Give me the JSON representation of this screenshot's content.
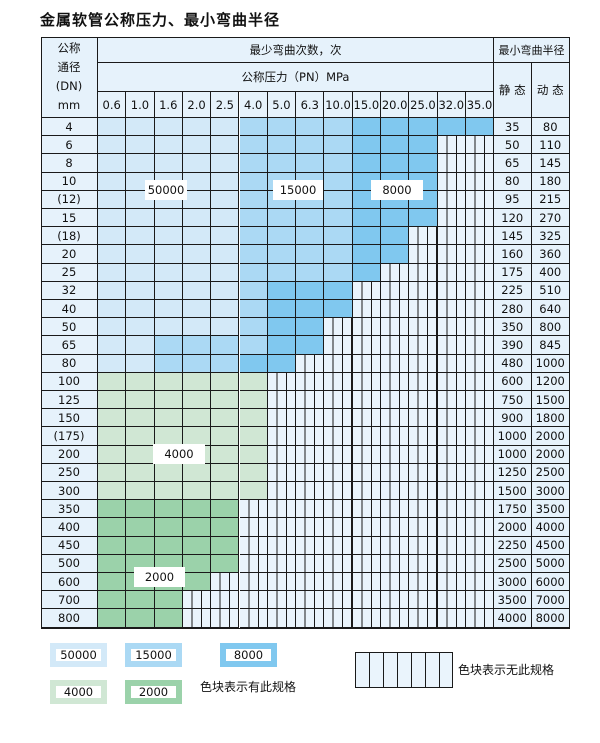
{
  "title": "金属软管公称压力、最小弯曲半径",
  "header": {
    "dn_label_lines": [
      "公称",
      "通径",
      "(DN)",
      "mm"
    ],
    "bend_count": "最少弯曲次数，次",
    "pressure": "公称压力（PN）MPa",
    "min_radius": "最小弯曲半径",
    "static": "静 态",
    "dynamic": "动 态",
    "pressures": [
      "0.6",
      "1.0",
      "1.6",
      "2.0",
      "2.5",
      "4.0",
      "5.0",
      "6.3",
      "10.0",
      "15.0",
      "20.0",
      "25.0",
      "32.0",
      "35.0"
    ]
  },
  "zones": {
    "A": {
      "value": "50000",
      "color": "#d3e9f8"
    },
    "B": {
      "value": "15000",
      "color": "#abd9f4"
    },
    "C": {
      "value": "8000",
      "color": "#80c8ef"
    },
    "D": {
      "value": "4000",
      "color": "#d0e7d4"
    },
    "E": {
      "value": "2000",
      "color": "#9bd2aa"
    }
  },
  "rows": [
    {
      "dn": "4",
      "static": "35",
      "dynamic": "80",
      "cells": "AAAAABBBBCCCCC"
    },
    {
      "dn": "6",
      "static": "50",
      "dynamic": "110",
      "cells": "AAAAABBBBCCC--"
    },
    {
      "dn": "8",
      "static": "65",
      "dynamic": "145",
      "cells": "AAAAABBBBCCC--"
    },
    {
      "dn": "10",
      "static": "80",
      "dynamic": "180",
      "cells": "AAAAABBBBCCC--"
    },
    {
      "dn": "(12)",
      "static": "95",
      "dynamic": "215",
      "cells": "AAAAABBBBCCC--"
    },
    {
      "dn": "15",
      "static": "120",
      "dynamic": "270",
      "cells": "AAAAABBBBCCC--"
    },
    {
      "dn": "(18)",
      "static": "145",
      "dynamic": "325",
      "cells": "AAAAABBBBCC---"
    },
    {
      "dn": "20",
      "static": "160",
      "dynamic": "360",
      "cells": "AAAAABBBBCC---"
    },
    {
      "dn": "25",
      "static": "175",
      "dynamic": "400",
      "cells": "AAAAABBBBC----"
    },
    {
      "dn": "32",
      "static": "225",
      "dynamic": "510",
      "cells": "AAAAABCCC-----"
    },
    {
      "dn": "40",
      "static": "280",
      "dynamic": "640",
      "cells": "AAAAABCCC-----"
    },
    {
      "dn": "50",
      "static": "350",
      "dynamic": "800",
      "cells": "AAAAABCC------"
    },
    {
      "dn": "65",
      "static": "390",
      "dynamic": "845",
      "cells": "AABBBBCC------"
    },
    {
      "dn": "80",
      "static": "480",
      "dynamic": "1000",
      "cells": "AABBBCC-------"
    },
    {
      "dn": "100",
      "static": "600",
      "dynamic": "1200",
      "cells": "DDDDDD--------"
    },
    {
      "dn": "125",
      "static": "750",
      "dynamic": "1500",
      "cells": "DDDDDD--------"
    },
    {
      "dn": "150",
      "static": "900",
      "dynamic": "1800",
      "cells": "DDDDDD--------"
    },
    {
      "dn": "(175)",
      "static": "1000",
      "dynamic": "2000",
      "cells": "DDDDDD--------"
    },
    {
      "dn": "200",
      "static": "1000",
      "dynamic": "2000",
      "cells": "DDDDDD--------"
    },
    {
      "dn": "250",
      "static": "1250",
      "dynamic": "2500",
      "cells": "DDDDDD--------"
    },
    {
      "dn": "300",
      "static": "1500",
      "dynamic": "3000",
      "cells": "DDDDDD--------"
    },
    {
      "dn": "350",
      "static": "1750",
      "dynamic": "3500",
      "cells": "EEEEE---------"
    },
    {
      "dn": "400",
      "static": "2000",
      "dynamic": "4000",
      "cells": "EEEEE---------"
    },
    {
      "dn": "450",
      "static": "2250",
      "dynamic": "4500",
      "cells": "EEEEE---------"
    },
    {
      "dn": "500",
      "static": "2500",
      "dynamic": "5000",
      "cells": "EEEEE---------"
    },
    {
      "dn": "600",
      "static": "3000",
      "dynamic": "6000",
      "cells": "EEEE----------"
    },
    {
      "dn": "700",
      "static": "3500",
      "dynamic": "7000",
      "cells": "EEE-----------"
    },
    {
      "dn": "800",
      "static": "4000",
      "dynamic": "8000",
      "cells": "EEE-----------"
    }
  ],
  "legend": {
    "has_spec": "色块表示有此规格",
    "no_spec": "色块表示无此规格"
  }
}
